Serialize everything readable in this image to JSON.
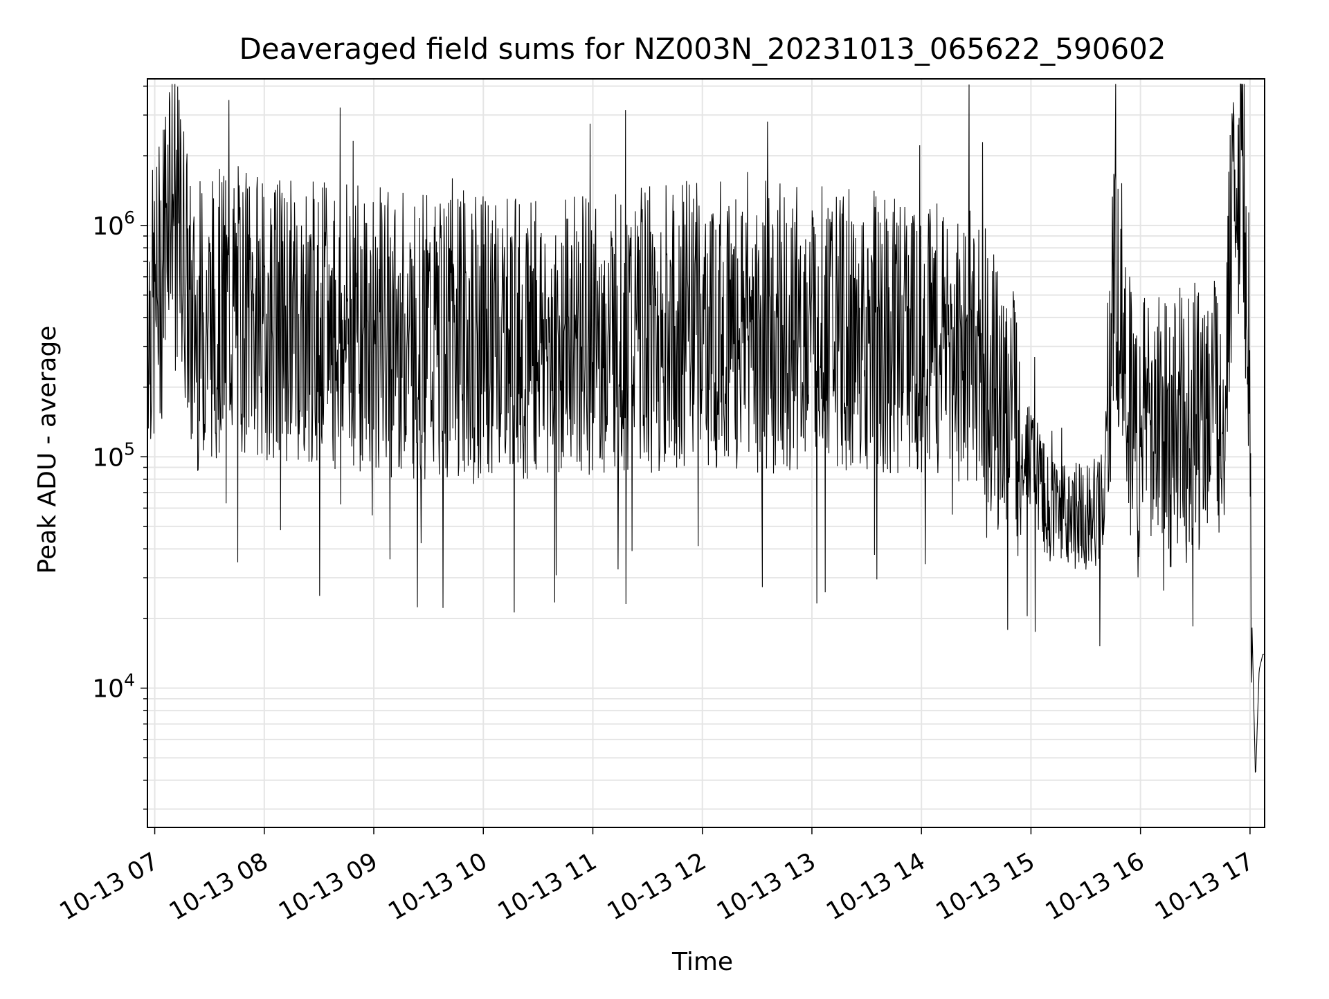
{
  "chart_data": {
    "type": "line",
    "title": "Deaveraged field sums for NZ003N_20231013_065622_590602",
    "xlabel": "Time",
    "ylabel": "Peak ADU - average",
    "x_ticks": [
      "10-13 07",
      "10-13 08",
      "10-13 09",
      "10-13 10",
      "10-13 11",
      "10-13 12",
      "10-13 13",
      "10-13 14",
      "10-13 15",
      "10-13 16",
      "10-13 17"
    ],
    "y_ticks": [
      {
        "base": "10",
        "exp": "4",
        "value": 10000
      },
      {
        "base": "10",
        "exp": "5",
        "value": 100000
      },
      {
        "base": "10",
        "exp": "6",
        "value": 1000000
      }
    ],
    "xlim": [
      "2023-10-13 06:56",
      "2023-10-13 17:08"
    ],
    "ylim": [
      2500,
      4300000
    ],
    "yscale": "log",
    "grid": true,
    "line_color": "#000000",
    "grid_color": "#e5e5e5",
    "series": [
      {
        "points": [
          [
            "2023-10-13 06:56",
            450000
          ],
          [
            "2023-10-13 07:00",
            420000
          ],
          [
            "2023-10-13 07:04",
            700000
          ],
          [
            "2023-10-13 07:08",
            1900000
          ],
          [
            "2023-10-13 07:12",
            1000000
          ],
          [
            "2023-10-13 07:16",
            800000
          ],
          [
            "2023-10-13 07:20",
            350000
          ],
          [
            "2023-10-13 07:30",
            400000
          ],
          [
            "2023-10-13 07:45",
            450000
          ],
          [
            "2023-10-13 08:00",
            400000
          ],
          [
            "2023-10-13 08:30",
            380000
          ],
          [
            "2023-10-13 09:00",
            350000
          ],
          [
            "2023-10-13 09:30",
            330000
          ],
          [
            "2023-10-13 10:00",
            340000
          ],
          [
            "2023-10-13 10:30",
            330000
          ],
          [
            "2023-10-13 11:00",
            330000
          ],
          [
            "2023-10-13 11:30",
            350000
          ],
          [
            "2023-10-13 12:00",
            380000
          ],
          [
            "2023-10-13 12:30",
            360000
          ],
          [
            "2023-10-13 13:00",
            370000
          ],
          [
            "2023-10-13 13:30",
            340000
          ],
          [
            "2023-10-13 14:00",
            330000
          ],
          [
            "2023-10-13 14:30",
            280000
          ],
          [
            "2023-10-13 14:50",
            150000
          ],
          [
            "2023-10-13 15:10",
            60000
          ],
          [
            "2023-10-13 15:25",
            55000
          ],
          [
            "2023-10-13 15:40",
            60000
          ],
          [
            "2023-10-13 15:45",
            450000
          ],
          [
            "2023-10-13 15:50",
            450000
          ],
          [
            "2023-10-13 15:55",
            120000
          ],
          [
            "2023-10-13 16:15",
            130000
          ],
          [
            "2023-10-13 16:30",
            140000
          ],
          [
            "2023-10-13 16:45",
            150000
          ],
          [
            "2023-10-13 16:50",
            800000
          ],
          [
            "2023-10-13 16:55",
            2000000
          ],
          [
            "2023-10-13 16:58",
            700000
          ],
          [
            "2023-10-13 17:00",
            200000
          ],
          [
            "2023-10-13 17:01",
            20000
          ],
          [
            "2023-10-13 17:02",
            9000
          ],
          [
            "2023-10-13 17:03",
            4000
          ],
          [
            "2023-10-13 17:05",
            12000
          ],
          [
            "2023-10-13 17:07",
            14000
          ]
        ]
      }
    ]
  }
}
